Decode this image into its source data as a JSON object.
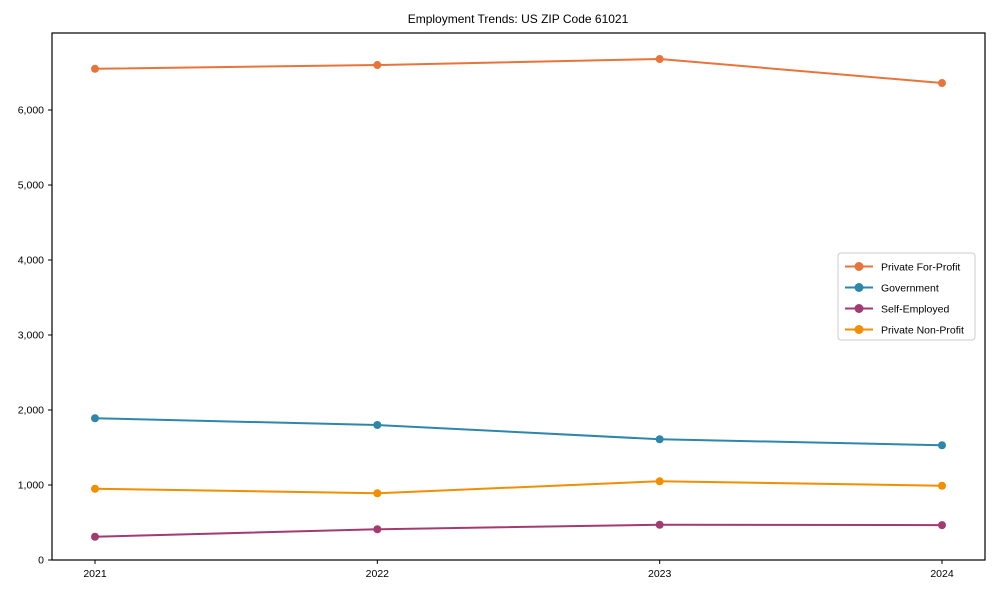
{
  "chart_data": {
    "type": "line",
    "title": "Employment Trends: US ZIP Code 61021",
    "categories": [
      "2021",
      "2022",
      "2023",
      "2024"
    ],
    "series": [
      {
        "name": "Private For-Profit",
        "color": "#E8743B",
        "values": [
          6550,
          6600,
          6680,
          6360
        ]
      },
      {
        "name": "Government",
        "color": "#2E86AB",
        "values": [
          1890,
          1800,
          1610,
          1530
        ]
      },
      {
        "name": "Self-Employed",
        "color": "#A23B72",
        "values": [
          310,
          410,
          470,
          465
        ]
      },
      {
        "name": "Private Non-Profit",
        "color": "#F18F01",
        "values": [
          950,
          890,
          1050,
          990
        ]
      }
    ],
    "xlabel": "",
    "ylabel": "",
    "ylim": [
      0,
      7027
    ],
    "yticks": [
      0,
      1000,
      2000,
      3000,
      4000,
      5000,
      6000
    ],
    "ytick_labels": [
      "0",
      "1,000",
      "2,000",
      "3,000",
      "4,000",
      "5,000",
      "6,000"
    ],
    "grid": false,
    "legend_position": "center-right",
    "styles": {
      "spine_color": "#000000",
      "legend_border_color": "#cccccc",
      "legend_background": "#ffffff",
      "marker_radius": 4,
      "line_width": 2
    }
  }
}
